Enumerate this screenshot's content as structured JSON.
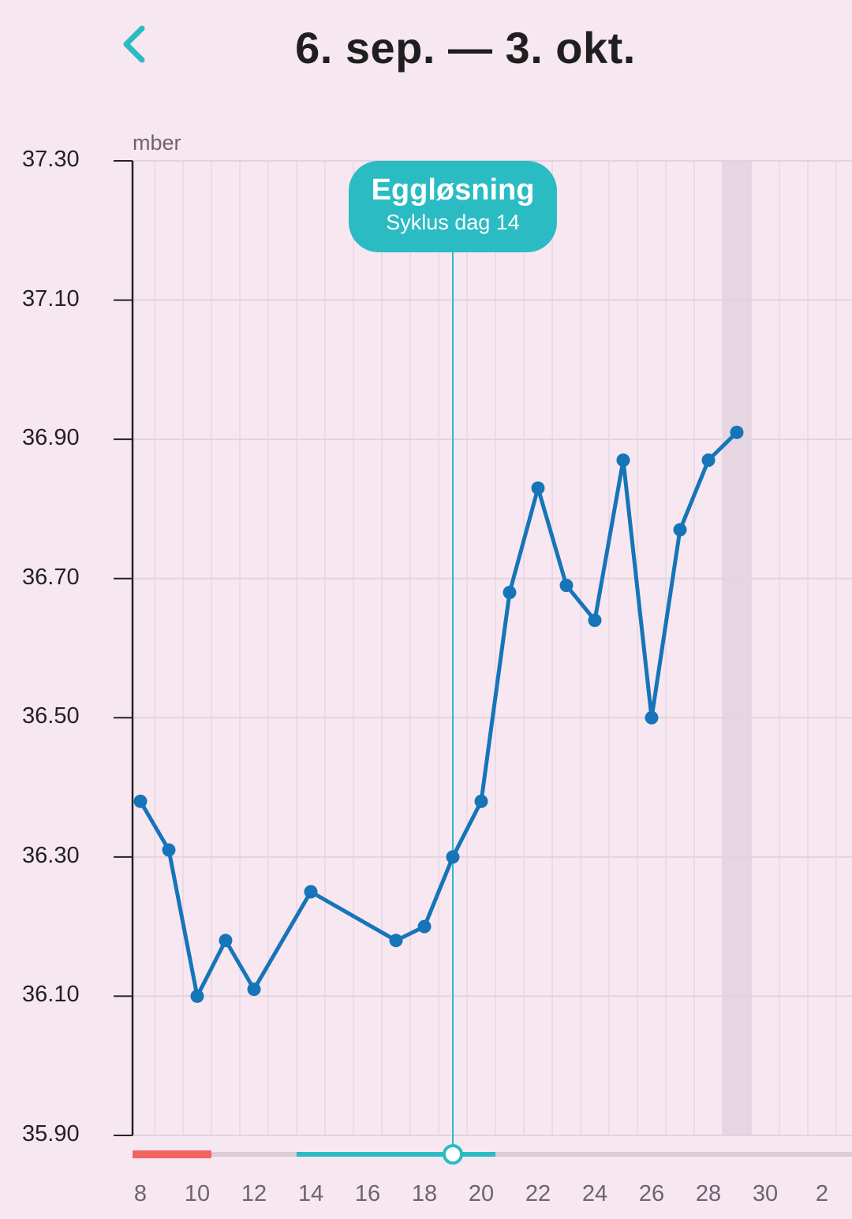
{
  "header": {
    "back_icon": "chevron-left-icon",
    "title": "6. sep. — 3. okt."
  },
  "chart": {
    "unit_label": "mber",
    "ovulation": {
      "title": "Eggløsning",
      "subtitle": "Syklus dag 14"
    },
    "colors": {
      "line": "#1575b8",
      "ovulation": "#2bbcc3",
      "period": "#f26360",
      "grid": "#e2d3de",
      "highlight": "#e6d6e2"
    }
  },
  "chart_data": {
    "type": "line",
    "title": "",
    "xlabel": "",
    "ylabel": "",
    "ylim": [
      35.9,
      37.3
    ],
    "yticks": [
      "37.30",
      "37.10",
      "36.90",
      "36.70",
      "36.50",
      "36.30",
      "36.10",
      "35.90"
    ],
    "xticks": [
      "8",
      "10",
      "12",
      "14",
      "16",
      "18",
      "20",
      "22",
      "24",
      "26",
      "28",
      "30",
      "2"
    ],
    "x": [
      "8",
      "9",
      "10",
      "11",
      "12",
      "14",
      "17",
      "18",
      "19",
      "20",
      "21",
      "22",
      "23",
      "24",
      "25",
      "26",
      "27",
      "28",
      "29"
    ],
    "series": [
      {
        "values": [
          36.38,
          36.31,
          36.1,
          36.18,
          36.11,
          36.25,
          36.18,
          36.2,
          36.3,
          36.38,
          36.68,
          36.83,
          36.69,
          36.64,
          36.87,
          36.5,
          36.77,
          36.87,
          36.91
        ]
      }
    ],
    "ovulation_day": "19",
    "period_days": [
      "8",
      "9",
      "10"
    ],
    "fertile_window": [
      "14",
      "20"
    ],
    "highlighted_day": "29",
    "grid": true
  }
}
